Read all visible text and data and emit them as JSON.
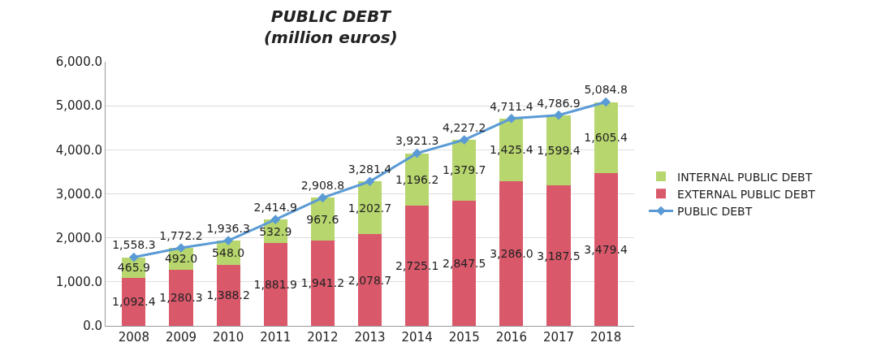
{
  "chart_data": {
    "type": "bar",
    "title": "PUBLIC DEBT",
    "subtitle": "(million euros)",
    "stacked": true,
    "categories": [
      "2008",
      "2009",
      "2010",
      "2011",
      "2012",
      "2013",
      "2014",
      "2015",
      "2016",
      "2017",
      "2018"
    ],
    "series": [
      {
        "name": "EXTERNAL PUBLIC DEBT",
        "color": "#d9596b",
        "values": [
          1092.4,
          1280.3,
          1388.2,
          1881.9,
          1941.2,
          2078.7,
          2725.1,
          2847.5,
          3286.0,
          3187.5,
          3479.4
        ],
        "value_labels": [
          "1,092.4",
          "1,280.3",
          "1,388.2",
          "1,881.9",
          "1,941.2",
          "2,078.7",
          "2,725.1",
          "2,847.5",
          "3,286.0",
          "3,187.5",
          "3,479.4"
        ]
      },
      {
        "name": "INTERNAL PUBLIC DEBT",
        "color": "#b7d66e",
        "values": [
          465.9,
          492.0,
          548.0,
          532.9,
          967.6,
          1202.7,
          1196.2,
          1379.7,
          1425.4,
          1599.4,
          1605.4
        ],
        "value_labels": [
          "465.9",
          "492.0",
          "548.0",
          "532.9",
          "967.6",
          "1,202.7",
          "1,196.2",
          "1,379.7",
          "1,425.4",
          "1,599.4",
          "1,605.4"
        ]
      },
      {
        "name": "PUBLIC DEBT",
        "type": "line",
        "color": "#5b9bd5",
        "marker": "diamond",
        "values": [
          1558.3,
          1772.2,
          1936.3,
          2414.9,
          2908.8,
          3281.4,
          3921.3,
          4227.2,
          4711.4,
          4786.9,
          5084.8
        ],
        "value_labels": [
          "1,558.3",
          "1,772.2",
          "1,936.3",
          "2,414.9",
          "2,908.8",
          "3,281.4",
          "3,921.3",
          "4,227.2",
          "4,711.4",
          "4,786.9",
          "5,084.8"
        ]
      }
    ],
    "ylim": [
      0,
      6000
    ],
    "yticks": [
      {
        "value": 0,
        "label": "0.0"
      },
      {
        "value": 1000,
        "label": "1,000.0"
      },
      {
        "value": 2000,
        "label": "2,000.0"
      },
      {
        "value": 3000,
        "label": "3,000.0"
      },
      {
        "value": 4000,
        "label": "4,000.0"
      },
      {
        "value": 5000,
        "label": "5,000.0"
      },
      {
        "value": 6000,
        "label": "6,000.0"
      }
    ],
    "grid": "y",
    "legend": "right"
  }
}
